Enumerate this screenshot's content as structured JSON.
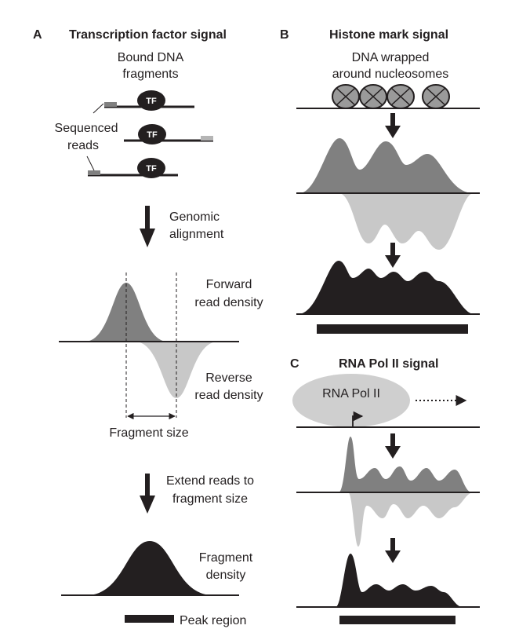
{
  "panel_a": {
    "letter": "A",
    "title": "Transcription factor signal",
    "bound_dna_line1": "Bound DNA",
    "bound_dna_line2": "fragments",
    "tf_label": "TF",
    "sequenced_line1": "Sequenced",
    "sequenced_line2": "reads",
    "alignment_line1": "Genomic",
    "alignment_line2": "alignment",
    "forward_line1": "Forward",
    "forward_line2": "read density",
    "reverse_line1": "Reverse",
    "reverse_line2": "read density",
    "fragment_size": "Fragment size",
    "extend_line1": "Extend reads to",
    "extend_line2": "fragment size",
    "fragment_density_line1": "Fragment",
    "fragment_density_line2": "density",
    "peak_region": "Peak region"
  },
  "panel_b": {
    "letter": "B",
    "title": "Histone mark signal",
    "dna_line1": "DNA wrapped",
    "dna_line2": "around nucleosomes"
  },
  "panel_c": {
    "letter": "C",
    "title": "RNA Pol II signal",
    "pol_label": "RNA Pol II"
  },
  "colors": {
    "dark": "#231f20",
    "forward_gray": "#808080",
    "reverse_gray": "#c8c8c8",
    "nucleosome_gray": "#9a9a9a",
    "pol_ellipse": "#cfcfcf"
  }
}
